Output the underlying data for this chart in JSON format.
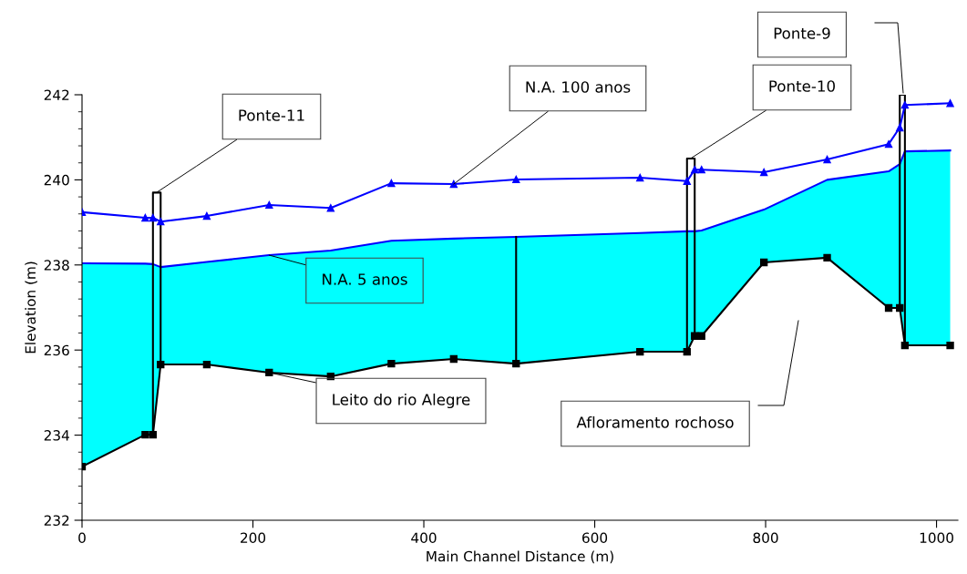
{
  "chart_data": {
    "type": "line",
    "xlabel": "Main Channel Distance (m)",
    "ylabel": "Elevation (m)",
    "x": [
      0,
      74,
      83,
      92,
      146,
      219,
      291,
      362,
      435,
      508,
      653,
      708,
      717,
      725,
      798,
      872,
      944,
      957,
      963,
      1016
    ],
    "series": [
      {
        "name": "N.A. 5 anos",
        "color": "#0000ff",
        "marker": "none",
        "values": [
          238.04,
          238.03,
          238.02,
          237.95,
          238.07,
          238.23,
          238.34,
          238.57,
          238.62,
          238.66,
          238.75,
          238.79,
          238.79,
          238.81,
          239.3,
          240.0,
          240.2,
          240.37,
          240.67,
          240.69
        ],
        "lower": [
          233.26,
          234.01,
          234.01,
          235.66,
          235.66,
          235.47,
          235.38,
          235.68,
          235.79,
          235.68,
          235.96,
          235.96,
          236.33,
          236.33,
          238.06,
          238.17,
          236.99,
          236.99,
          236.11,
          236.11
        ],
        "upper": [
          238.04,
          238.03,
          238.02,
          237.95,
          238.07,
          238.23,
          238.34,
          238.57,
          238.62,
          238.66,
          238.75,
          238.79,
          238.79,
          238.81,
          239.3,
          240.0,
          240.2,
          240.37,
          240.67,
          240.69
        ]
      },
      {
        "name": "Leito do rio Alegre",
        "color": "#000000",
        "marker": "square",
        "values": [
          233.26,
          234.01,
          234.01,
          235.66,
          235.66,
          235.47,
          235.38,
          235.68,
          235.79,
          235.68,
          235.96,
          235.96,
          236.33,
          236.33,
          238.06,
          238.17,
          236.99,
          236.99,
          236.11,
          236.11
        ]
      },
      {
        "name": "N.A. 100 anos",
        "color": "#0000ff",
        "marker": "triangle",
        "values": [
          239.24,
          239.11,
          239.11,
          239.02,
          239.15,
          239.41,
          239.34,
          239.92,
          239.9,
          240.01,
          240.05,
          239.97,
          240.24,
          240.24,
          240.18,
          240.48,
          240.84,
          241.23,
          241.76,
          241.8
        ]
      },
      {
        "color": "#000000",
        "marker": "none",
        "x": [
          83,
          83,
          92,
          92
        ],
        "values": [
          234.01,
          239.7,
          239.7,
          235.66
        ]
      },
      {
        "color": "#000000",
        "marker": "none",
        "x": [
          508,
          508
        ],
        "values": [
          235.68,
          238.66
        ]
      },
      {
        "color": "#000000",
        "marker": "none",
        "x": [
          708,
          708,
          717,
          717
        ],
        "values": [
          235.96,
          240.5,
          240.5,
          236.33
        ]
      },
      {
        "color": "#000000",
        "marker": "none",
        "x": [
          957,
          957,
          963,
          963
        ],
        "values": [
          236.99,
          242.0,
          242.0,
          236.11
        ]
      }
    ],
    "annotations": [
      {
        "text": "Ponte-11",
        "x": 87,
        "y": 239.7
      },
      {
        "text": "Ponte-10",
        "x": 712,
        "y": 240.5
      },
      "Ponte-9",
      "Afloramento rochoso"
    ],
    "xlim": [
      0,
      1025
    ],
    "xticks": [
      0,
      200,
      400,
      600,
      800,
      1000
    ],
    "ylim": [
      232,
      242
    ],
    "yticks": [
      232,
      {
        "value": 232.4,
        "label": null
      },
      {
        "value": 232.8,
        "label": null
      },
      {
        "value": 233.2,
        "label": null
      },
      {
        "value": 233.6,
        "label": null
      },
      234,
      {
        "value": 234.4,
        "label": null
      },
      {
        "value": 234.8,
        "label": null
      },
      {
        "value": 235.2,
        "label": null
      },
      {
        "value": 235.6,
        "label": null
      },
      236,
      {
        "value": 236.4,
        "label": null
      },
      {
        "value": 236.8,
        "label": null
      },
      {
        "value": 237.2,
        "label": null
      },
      {
        "value": 237.6,
        "label": null
      },
      238,
      {
        "value": 238.4,
        "label": null
      },
      {
        "value": 238.8,
        "label": null
      },
      {
        "value": 239.2,
        "label": null
      },
      {
        "value": 239.6,
        "label": null
      },
      240,
      {
        "value": 240.4,
        "label": null
      },
      {
        "value": 240.8,
        "label": null
      },
      {
        "value": 241.2,
        "label": null
      },
      {
        "value": 241.6,
        "label": null
      },
      242
    ],
    "grid": false,
    "legend": false
  }
}
